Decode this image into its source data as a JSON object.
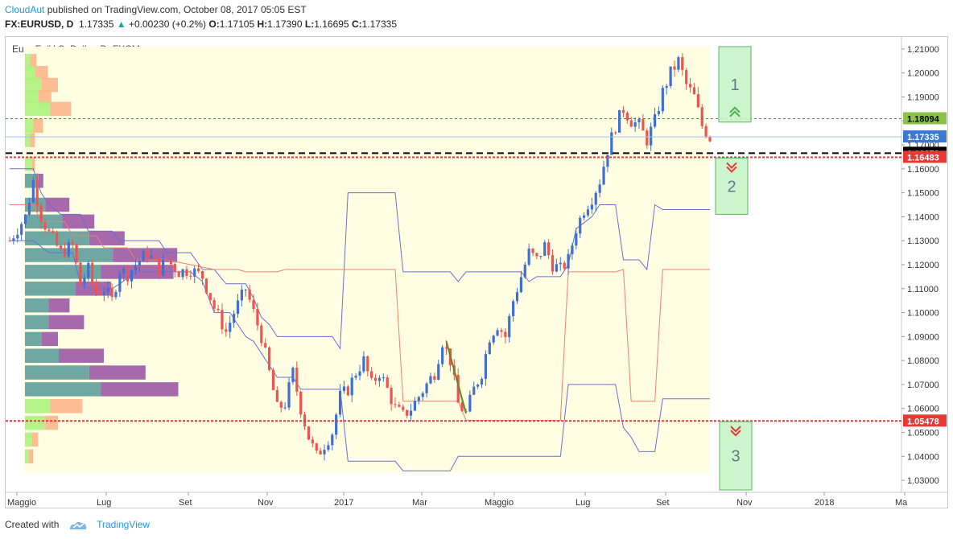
{
  "header": {
    "author": "CloudAut",
    "published": "published on TradingView.com, October 08, 2017 05:05 EST",
    "symbol": "FX:EURUSD, D",
    "last": "1.17335",
    "change": "+0.00230 (+0.2%)",
    "o_label": "O:",
    "o": "1.17105",
    "h_label": "H:",
    "h": "1.17390",
    "l_label": "L:",
    "l": "1.16695",
    "c_label": "C:",
    "c": "1.17335"
  },
  "footer": {
    "created_with": "Created with",
    "brand": "TradingView"
  },
  "colors": {
    "up": "#26a69a",
    "down": "#ef5350",
    "envelope": "#6a6fd6",
    "midline": "#f08070",
    "zone_bg": "#fffde2",
    "box_fill": "#c8f5c8",
    "box_stroke": "#4caf50"
  },
  "chart_data": {
    "type": "candlestick",
    "title": "Euro Fx/U.S. Dollar, D, FXCM",
    "ylim": [
      1.025,
      1.215
    ],
    "y_ticks": [
      "1.21000",
      "1.20000",
      "1.19000",
      "1.18000",
      "1.17000",
      "1.16000",
      "1.15000",
      "1.14000",
      "1.13000",
      "1.12000",
      "1.11000",
      "1.10000",
      "1.09000",
      "1.08000",
      "1.07000",
      "1.06000",
      "1.05000",
      "1.04000",
      "1.03000"
    ],
    "x_ticks": [
      "Maggio",
      "Lug",
      "Set",
      "Nov",
      "2017",
      "Mar",
      "Maggio",
      "Lug",
      "Set",
      "Nov",
      "2018",
      "Ma"
    ],
    "close_path": [
      [
        0,
        1.13
      ],
      [
        4,
        1.14
      ],
      [
        6,
        1.155
      ],
      [
        8,
        1.14
      ],
      [
        10,
        1.133
      ],
      [
        13,
        1.125
      ],
      [
        16,
        1.128
      ],
      [
        18,
        1.112
      ],
      [
        20,
        1.118
      ],
      [
        22,
        1.108
      ],
      [
        24,
        1.11
      ],
      [
        26,
        1.105
      ],
      [
        28,
        1.118
      ],
      [
        30,
        1.116
      ],
      [
        32,
        1.12
      ],
      [
        35,
        1.125
      ],
      [
        38,
        1.118
      ],
      [
        40,
        1.122
      ],
      [
        43,
        1.117
      ],
      [
        46,
        1.118
      ],
      [
        49,
        1.115
      ],
      [
        52,
        1.102
      ],
      [
        55,
        1.092
      ],
      [
        57,
        1.1
      ],
      [
        60,
        1.11
      ],
      [
        62,
        1.1
      ],
      [
        64,
        1.09
      ],
      [
        66,
        1.075
      ],
      [
        68,
        1.06
      ],
      [
        70,
        1.062
      ],
      [
        72,
        1.075
      ],
      [
        74,
        1.06
      ],
      [
        76,
        1.048
      ],
      [
        78,
        1.04
      ],
      [
        80,
        1.045
      ],
      [
        82,
        1.05
      ],
      [
        84,
        1.065
      ],
      [
        86,
        1.068
      ],
      [
        88,
        1.075
      ],
      [
        90,
        1.08
      ],
      [
        92,
        1.07
      ],
      [
        94,
        1.075
      ],
      [
        96,
        1.068
      ],
      [
        98,
        1.06
      ],
      [
        100,
        1.057
      ],
      [
        102,
        1.06
      ],
      [
        104,
        1.065
      ],
      [
        106,
        1.07
      ],
      [
        108,
        1.075
      ],
      [
        110,
        1.088
      ],
      [
        112,
        1.08
      ],
      [
        114,
        1.062
      ],
      [
        116,
        1.058
      ],
      [
        118,
        1.068
      ],
      [
        120,
        1.075
      ],
      [
        122,
        1.09
      ],
      [
        124,
        1.095
      ],
      [
        126,
        1.09
      ],
      [
        128,
        1.105
      ],
      [
        130,
        1.115
      ],
      [
        132,
        1.125
      ],
      [
        134,
        1.122
      ],
      [
        136,
        1.128
      ],
      [
        138,
        1.12
      ],
      [
        140,
        1.118
      ],
      [
        142,
        1.122
      ],
      [
        144,
        1.135
      ],
      [
        146,
        1.143
      ],
      [
        148,
        1.148
      ],
      [
        150,
        1.155
      ],
      [
        152,
        1.168
      ],
      [
        154,
        1.178
      ],
      [
        156,
        1.185
      ],
      [
        158,
        1.18
      ],
      [
        160,
        1.178
      ],
      [
        162,
        1.172
      ],
      [
        164,
        1.18
      ],
      [
        166,
        1.192
      ],
      [
        168,
        1.2
      ],
      [
        170,
        1.205
      ],
      [
        172,
        1.195
      ],
      [
        174,
        1.19
      ],
      [
        176,
        1.178
      ],
      [
        178,
        1.173
      ]
    ],
    "upper_envelope": [
      [
        0,
        1.16
      ],
      [
        6,
        1.16
      ],
      [
        8,
        1.15
      ],
      [
        10,
        1.145
      ],
      [
        13,
        1.141
      ],
      [
        18,
        1.141
      ],
      [
        20,
        1.134
      ],
      [
        26,
        1.134
      ],
      [
        28,
        1.13
      ],
      [
        38,
        1.13
      ],
      [
        40,
        1.125
      ],
      [
        46,
        1.125
      ],
      [
        49,
        1.118
      ],
      [
        52,
        1.118
      ],
      [
        55,
        1.112
      ],
      [
        60,
        1.112
      ],
      [
        62,
        1.106
      ],
      [
        64,
        1.098
      ],
      [
        66,
        1.095
      ],
      [
        68,
        1.09
      ],
      [
        82,
        1.09
      ],
      [
        84,
        1.085
      ],
      [
        86,
        1.15
      ],
      [
        98,
        1.15
      ],
      [
        100,
        1.117
      ],
      [
        112,
        1.117
      ],
      [
        114,
        1.113
      ],
      [
        116,
        1.117
      ],
      [
        130,
        1.117
      ],
      [
        132,
        1.113
      ],
      [
        134,
        1.115
      ],
      [
        140,
        1.115
      ],
      [
        142,
        1.12
      ],
      [
        144,
        1.135
      ],
      [
        148,
        1.14
      ],
      [
        150,
        1.145
      ],
      [
        154,
        1.145
      ],
      [
        156,
        1.122
      ],
      [
        160,
        1.122
      ],
      [
        162,
        1.118
      ],
      [
        164,
        1.145
      ],
      [
        166,
        1.143
      ],
      [
        178,
        1.143
      ]
    ],
    "lower_envelope": [
      [
        0,
        1.13
      ],
      [
        6,
        1.13
      ],
      [
        10,
        1.125
      ],
      [
        16,
        1.125
      ],
      [
        18,
        1.112
      ],
      [
        20,
        1.11
      ],
      [
        26,
        1.11
      ],
      [
        28,
        1.112
      ],
      [
        32,
        1.117
      ],
      [
        46,
        1.117
      ],
      [
        49,
        1.113
      ],
      [
        52,
        1.1
      ],
      [
        56,
        1.1
      ],
      [
        58,
        1.095
      ],
      [
        60,
        1.09
      ],
      [
        62,
        1.088
      ],
      [
        64,
        1.083
      ],
      [
        66,
        1.078
      ],
      [
        68,
        1.073
      ],
      [
        72,
        1.073
      ],
      [
        74,
        1.068
      ],
      [
        84,
        1.068
      ],
      [
        86,
        1.038
      ],
      [
        98,
        1.038
      ],
      [
        100,
        1.034
      ],
      [
        112,
        1.034
      ],
      [
        114,
        1.04
      ],
      [
        140,
        1.04
      ],
      [
        142,
        1.07
      ],
      [
        154,
        1.07
      ],
      [
        156,
        1.052
      ],
      [
        158,
        1.048
      ],
      [
        160,
        1.042
      ],
      [
        164,
        1.042
      ],
      [
        166,
        1.064
      ],
      [
        178,
        1.064
      ]
    ],
    "midline": [
      [
        0,
        1.145
      ],
      [
        6,
        1.145
      ],
      [
        8,
        1.138
      ],
      [
        14,
        1.138
      ],
      [
        16,
        1.132
      ],
      [
        22,
        1.132
      ],
      [
        24,
        1.127
      ],
      [
        30,
        1.127
      ],
      [
        32,
        1.122
      ],
      [
        40,
        1.122
      ],
      [
        46,
        1.12
      ],
      [
        52,
        1.118
      ],
      [
        58,
        1.118
      ],
      [
        60,
        1.117
      ],
      [
        68,
        1.117
      ],
      [
        70,
        1.118
      ],
      [
        98,
        1.118
      ],
      [
        100,
        1.063
      ],
      [
        114,
        1.063
      ],
      [
        116,
        1.055
      ],
      [
        140,
        1.055
      ],
      [
        142,
        1.117
      ],
      [
        154,
        1.117
      ],
      [
        156,
        1.118
      ],
      [
        158,
        1.063
      ],
      [
        164,
        1.063
      ],
      [
        166,
        1.118
      ],
      [
        178,
        1.118
      ]
    ],
    "levels": [
      {
        "value": 1.18094,
        "label": "1.18094",
        "style": "green-dotted"
      },
      {
        "value": 1.17335,
        "label": "1.17335",
        "style": "current"
      },
      {
        "value": 1.16653,
        "label": "1.16653",
        "style": "black-dashed"
      },
      {
        "value": 1.16483,
        "label": "1.16483",
        "style": "red-dotted"
      },
      {
        "value": 1.05478,
        "label": "1.05478",
        "style": "red-dotted"
      }
    ],
    "zones": [
      {
        "label": "1",
        "top": 1.211,
        "bottom": 1.1795,
        "arrow": "up"
      },
      {
        "label": "2",
        "top": 1.1645,
        "bottom": 1.141,
        "arrow": "down"
      },
      {
        "label": "3",
        "top": 1.0545,
        "bottom": 1.026,
        "arrow": "down"
      }
    ],
    "volume_profile": [
      {
        "price": 1.205,
        "green": 3,
        "orange": 4
      },
      {
        "price": 1.2,
        "green": 6,
        "orange": 8
      },
      {
        "price": 1.195,
        "green": 10,
        "orange": 10
      },
      {
        "price": 1.19,
        "green": 8,
        "orange": 8
      },
      {
        "price": 1.185,
        "green": 15,
        "orange": 13
      },
      {
        "price": 1.178,
        "green": 5,
        "orange": 6
      },
      {
        "price": 1.172,
        "green": 3,
        "orange": 3
      },
      {
        "price": 1.162,
        "green": 4,
        "orange": 2
      },
      {
        "price": 1.155,
        "green": 8,
        "orange": 3
      },
      {
        "price": 1.145,
        "green": 12,
        "orange": 15
      },
      {
        "price": 1.138,
        "green": 22,
        "orange": 20
      },
      {
        "price": 1.131,
        "green": 38,
        "orange": 22
      },
      {
        "price": 1.124,
        "green": 52,
        "orange": 40
      },
      {
        "price": 1.117,
        "green": 45,
        "orange": 45
      },
      {
        "price": 1.11,
        "green": 30,
        "orange": 22
      },
      {
        "price": 1.103,
        "green": 14,
        "orange": 13
      },
      {
        "price": 1.096,
        "green": 14,
        "orange": 22
      },
      {
        "price": 1.089,
        "green": 10,
        "orange": 10
      },
      {
        "price": 1.082,
        "green": 20,
        "orange": 28
      },
      {
        "price": 1.075,
        "green": 38,
        "orange": 35
      },
      {
        "price": 1.068,
        "green": 45,
        "orange": 48
      },
      {
        "price": 1.061,
        "green": 15,
        "orange": 20
      },
      {
        "price": 1.054,
        "green": 12,
        "orange": 8
      },
      {
        "price": 1.047,
        "green": 4,
        "orange": 4
      },
      {
        "price": 1.04,
        "green": 2,
        "orange": 3
      }
    ]
  }
}
